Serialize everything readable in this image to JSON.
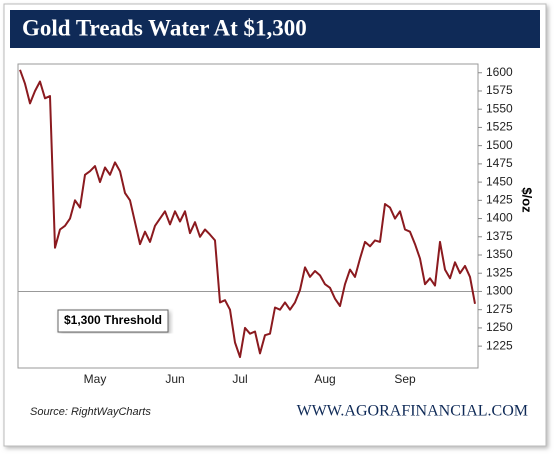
{
  "chart_data": {
    "type": "line",
    "title": "Gold Treads Water At $1,300",
    "y_label": "$/oz",
    "source": "Source: RightWayCharts",
    "footer": "WWW.AGORAFINANCIAL.COM",
    "threshold": {
      "value": 1300,
      "label": "$1,300 Threshold"
    },
    "color": "#8b1a1f",
    "categories": [
      null,
      null,
      null,
      null,
      null,
      null,
      null,
      null,
      null,
      null,
      null,
      null,
      null,
      null,
      null,
      "May",
      null,
      null,
      null,
      null,
      null,
      null,
      null,
      null,
      null,
      null,
      null,
      null,
      null,
      null,
      null,
      "Jun",
      null,
      null,
      null,
      null,
      null,
      null,
      null,
      null,
      null,
      null,
      null,
      null,
      "Jul",
      null,
      null,
      null,
      null,
      null,
      null,
      null,
      null,
      null,
      null,
      null,
      null,
      null,
      null,
      null,
      null,
      "Aug",
      null,
      null,
      null,
      null,
      null,
      null,
      null,
      null,
      null,
      null,
      null,
      null,
      null,
      null,
      null,
      "Sep",
      null,
      null,
      null,
      null,
      null,
      null,
      null,
      null,
      null,
      null,
      null,
      null,
      null,
      null
    ],
    "values": [
      1604,
      1585,
      1558,
      1575,
      1588,
      1565,
      1568,
      1360,
      1385,
      1390,
      1400,
      1425,
      1415,
      1460,
      1465,
      1472,
      1450,
      1470,
      1460,
      1477,
      1465,
      1435,
      1425,
      1395,
      1365,
      1382,
      1368,
      1390,
      1400,
      1410,
      1392,
      1410,
      1396,
      1410,
      1380,
      1395,
      1375,
      1385,
      1378,
      1370,
      1285,
      1288,
      1275,
      1230,
      1210,
      1250,
      1242,
      1245,
      1215,
      1240,
      1242,
      1278,
      1275,
      1285,
      1275,
      1285,
      1302,
      1333,
      1320,
      1328,
      1322,
      1310,
      1305,
      1290,
      1280,
      1310,
      1330,
      1320,
      1345,
      1368,
      1362,
      1370,
      1368,
      1420,
      1415,
      1400,
      1410,
      1385,
      1382,
      1365,
      1345,
      1310,
      1318,
      1308,
      1368,
      1330,
      1318,
      1340,
      1325,
      1335,
      1320,
      1283
    ],
    "ylim": [
      1195,
      1612
    ],
    "yticks": [
      1225,
      1250,
      1275,
      1300,
      1325,
      1350,
      1375,
      1400,
      1425,
      1450,
      1475,
      1500,
      1525,
      1550,
      1575,
      1600
    ]
  }
}
